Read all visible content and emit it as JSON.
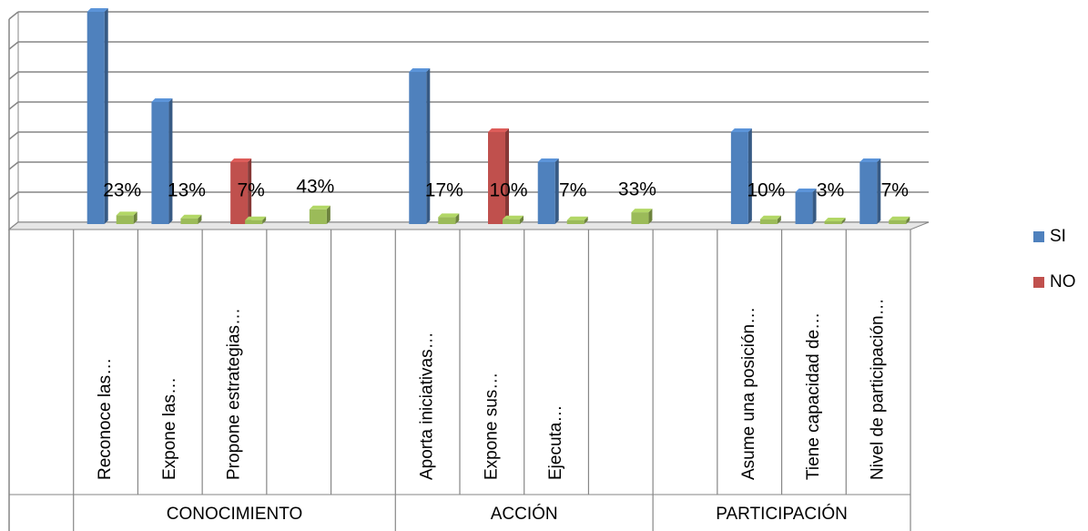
{
  "chart_data": {
    "type": "bar3d",
    "groups": [
      {
        "label": null,
        "count": 1
      },
      {
        "label": "CONOCIMIENTO",
        "count": 5
      },
      {
        "label": "ACCIÓN",
        "count": 4
      },
      {
        "label": "PARTICIPACIÓN",
        "count": 4
      }
    ],
    "categories": [
      null,
      "Reconoce las…",
      "Expone las…",
      "Propone  estrategias…",
      null,
      null,
      "Aporta iniciativas…",
      "Expone sus…",
      "Ejecuta…",
      null,
      null,
      "Asume una posición…",
      "Tiene capacidad de…",
      "Nivel de participación…"
    ],
    "series": [
      {
        "name": "SI",
        "color": "#4f81bd",
        "values": [
          null,
          7,
          4,
          null,
          null,
          null,
          5,
          null,
          2,
          null,
          null,
          3,
          1,
          2
        ]
      },
      {
        "name": "NO",
        "color": "#c0504d",
        "values": [
          null,
          null,
          null,
          2,
          null,
          null,
          null,
          3,
          null,
          null,
          null,
          null,
          null,
          null
        ]
      },
      {
        "color": "#9bbb59",
        "values": [
          null,
          0.23,
          0.13,
          0.07,
          0.43,
          null,
          0.17,
          0.1,
          0.07,
          0.33,
          null,
          0.1,
          0.03,
          0.07
        ],
        "value_labels": [
          null,
          "23%",
          "13%",
          "7%",
          "43%",
          null,
          "17%",
          "10%",
          "7%",
          "33%",
          null,
          "10%",
          "3%",
          "7%"
        ]
      }
    ],
    "ylim": [
      0,
      7
    ],
    "yticks": [
      0,
      1,
      2,
      3,
      4,
      5,
      6,
      7
    ],
    "grid": true,
    "legend": "right"
  }
}
